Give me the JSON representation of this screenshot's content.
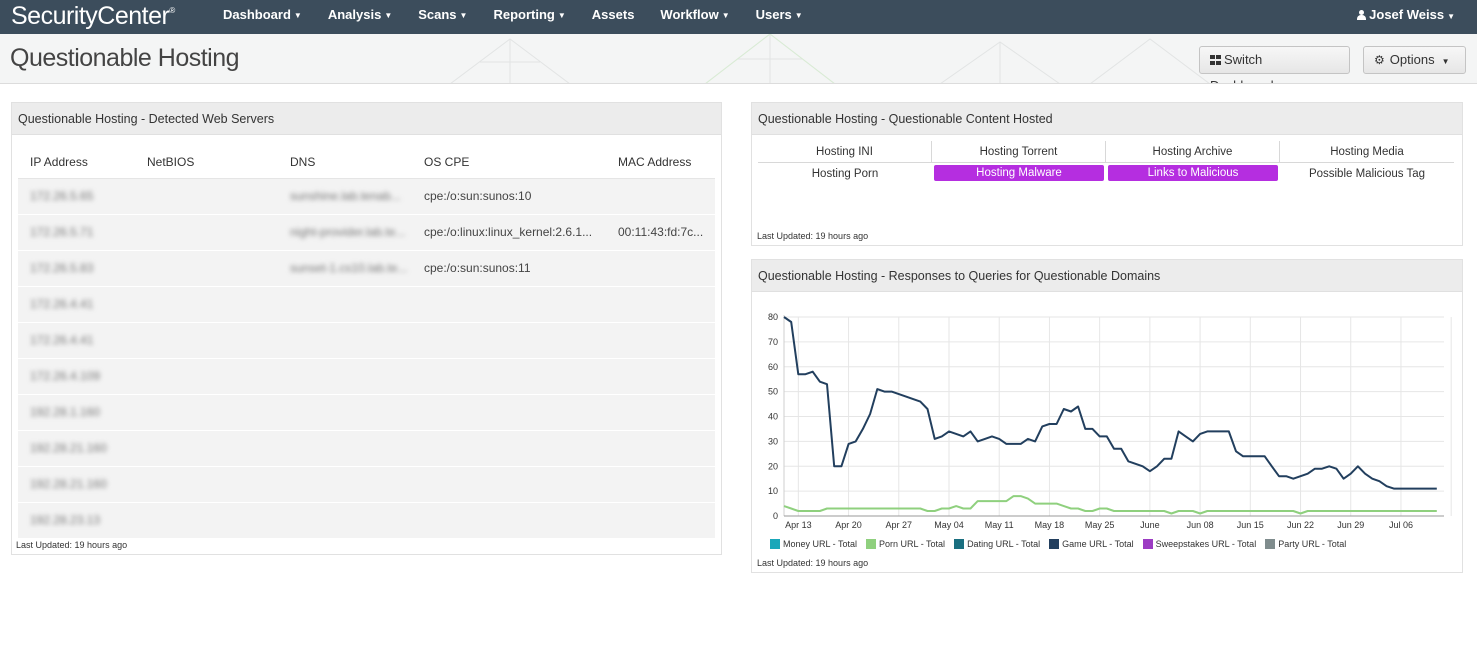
{
  "app": {
    "brand": "SecurityCenter",
    "brand_mark": "®",
    "nav": [
      {
        "label": "Dashboard",
        "dropdown": true
      },
      {
        "label": "Analysis",
        "dropdown": true
      },
      {
        "label": "Scans",
        "dropdown": true
      },
      {
        "label": "Reporting",
        "dropdown": true
      },
      {
        "label": "Assets",
        "dropdown": false
      },
      {
        "label": "Workflow",
        "dropdown": true
      },
      {
        "label": "Users",
        "dropdown": true
      }
    ],
    "user": "Josef Weiss"
  },
  "page": {
    "title": "Questionable Hosting",
    "switch_dashboard_label": "Switch Dashboard",
    "options_label": "Options"
  },
  "web_servers": {
    "title": "Questionable Hosting - Detected Web Servers",
    "columns": [
      "IP Address",
      "NetBIOS",
      "DNS",
      "OS CPE",
      "MAC Address"
    ],
    "rows": [
      {
        "ip": "172.26.5.65",
        "netbios": "",
        "dns": "sunshine.lab.tenab...",
        "os_cpe": "cpe:/o:sun:sunos:10",
        "mac": ""
      },
      {
        "ip": "172.26.5.71",
        "netbios": "",
        "dns": "night-provider.lab.te...",
        "os_cpe": "cpe:/o:linux:linux_kernel:2.6.1...",
        "mac": "00:11:43:fd:7c..."
      },
      {
        "ip": "172.26.5.83",
        "netbios": "",
        "dns": "sunset-1.cs10.lab.te...",
        "os_cpe": "cpe:/o:sun:sunos:11",
        "mac": ""
      },
      {
        "ip": "172.26.4.41",
        "netbios": "",
        "dns": "",
        "os_cpe": "",
        "mac": ""
      },
      {
        "ip": "172.26.4.41",
        "netbios": "",
        "dns": "",
        "os_cpe": "",
        "mac": ""
      },
      {
        "ip": "172.26.4.109",
        "netbios": "",
        "dns": "",
        "os_cpe": "",
        "mac": ""
      },
      {
        "ip": "192.28.1.160",
        "netbios": "",
        "dns": "",
        "os_cpe": "",
        "mac": ""
      },
      {
        "ip": "192.28.21.160",
        "netbios": "",
        "dns": "",
        "os_cpe": "",
        "mac": ""
      },
      {
        "ip": "192.28.21.160",
        "netbios": "",
        "dns": "",
        "os_cpe": "",
        "mac": ""
      },
      {
        "ip": "192.28.23.13",
        "netbios": "",
        "dns": "",
        "os_cpe": "",
        "mac": ""
      }
    ],
    "updated": "Last Updated: 19 hours ago"
  },
  "content_hosted": {
    "title": "Questionable Hosting - Questionable Content Hosted",
    "cells": [
      [
        {
          "label": "Hosting INI",
          "highlight": false
        },
        {
          "label": "Hosting Torrent",
          "highlight": false
        },
        {
          "label": "Hosting Archive",
          "highlight": false
        },
        {
          "label": "Hosting Media",
          "highlight": false
        }
      ],
      [
        {
          "label": "Hosting Porn",
          "highlight": false
        },
        {
          "label": "Hosting Malware",
          "highlight": true
        },
        {
          "label": "Links to Malicious",
          "highlight": true
        },
        {
          "label": "Possible Malicious Tag",
          "highlight": false
        }
      ]
    ],
    "highlight_color": "#b52ee0",
    "updated": "Last Updated: 19 hours ago"
  },
  "responses_chart": {
    "title": "Questionable Hosting - Responses to Queries for Questionable Domains",
    "updated": "Last Updated: 19 hours ago"
  },
  "chart_data": {
    "type": "line",
    "title": "Questionable Hosting - Responses to Queries for Questionable Domains",
    "xlabel": "",
    "ylabel": "",
    "ylim": [
      0,
      80
    ],
    "yticks": [
      0,
      10,
      20,
      30,
      40,
      50,
      60,
      70,
      80
    ],
    "x_tick_labels": [
      "Apr 13",
      "Apr 20",
      "Apr 27",
      "May 04",
      "May 11",
      "May 18",
      "May 25",
      "June",
      "Jun 08",
      "Jun 15",
      "Jun 22",
      "Jun 29",
      "Jul 06"
    ],
    "x_tick_days": [
      2,
      9,
      16,
      23,
      30,
      37,
      44,
      51,
      58,
      65,
      72,
      79,
      86
    ],
    "x_range": [
      0,
      92
    ],
    "grid": true,
    "legend_position": "bottom",
    "series": [
      {
        "name": "Money URL - Total",
        "color": "#1aa7b9",
        "values": []
      },
      {
        "name": "Porn URL - Total",
        "color": "#8fd07e",
        "values": [
          4,
          3,
          2,
          2,
          2,
          2,
          3,
          3,
          3,
          3,
          3,
          3,
          3,
          3,
          3,
          3,
          3,
          3,
          3,
          3,
          2,
          2,
          3,
          3,
          4,
          3,
          3,
          6,
          6,
          6,
          6,
          6,
          8,
          8,
          7,
          5,
          5,
          5,
          5,
          4,
          3,
          3,
          2,
          2,
          3,
          3,
          2,
          2,
          2,
          2,
          2,
          2,
          2,
          2,
          1,
          2,
          2,
          2,
          1,
          2,
          2,
          2,
          2,
          2,
          2,
          2,
          2,
          2,
          2,
          2,
          2,
          2,
          1,
          2,
          2,
          2,
          2,
          2,
          2,
          2,
          2,
          2,
          2,
          2,
          2,
          2,
          2,
          2,
          2,
          2,
          2,
          2
        ]
      },
      {
        "name": "Dating URL - Total",
        "color": "#1a6f80",
        "values": []
      },
      {
        "name": "Game URL - Total",
        "color": "#223f5e",
        "values": [
          80,
          78,
          57,
          57,
          58,
          54,
          53,
          20,
          20,
          29,
          30,
          35,
          41,
          51,
          50,
          50,
          49,
          48,
          47,
          46,
          43,
          31,
          32,
          34,
          33,
          32,
          34,
          30,
          31,
          32,
          31,
          29,
          29,
          29,
          31,
          30,
          36,
          37,
          37,
          43,
          42,
          44,
          35,
          35,
          32,
          32,
          27,
          27,
          22,
          21,
          20,
          18,
          20,
          23,
          23,
          34,
          32,
          30,
          33,
          34,
          34,
          34,
          34,
          26,
          24,
          24,
          24,
          24,
          20,
          16,
          16,
          15,
          16,
          17,
          19,
          19,
          20,
          19,
          15,
          17,
          20,
          17,
          15,
          14,
          12,
          11,
          11,
          11,
          11,
          11,
          11,
          11
        ]
      },
      {
        "name": "Sweepstakes URL - Total",
        "color": "#9c3cc3",
        "values": []
      },
      {
        "name": "Party URL - Total",
        "color": "#7f8c8d",
        "values": []
      }
    ]
  }
}
